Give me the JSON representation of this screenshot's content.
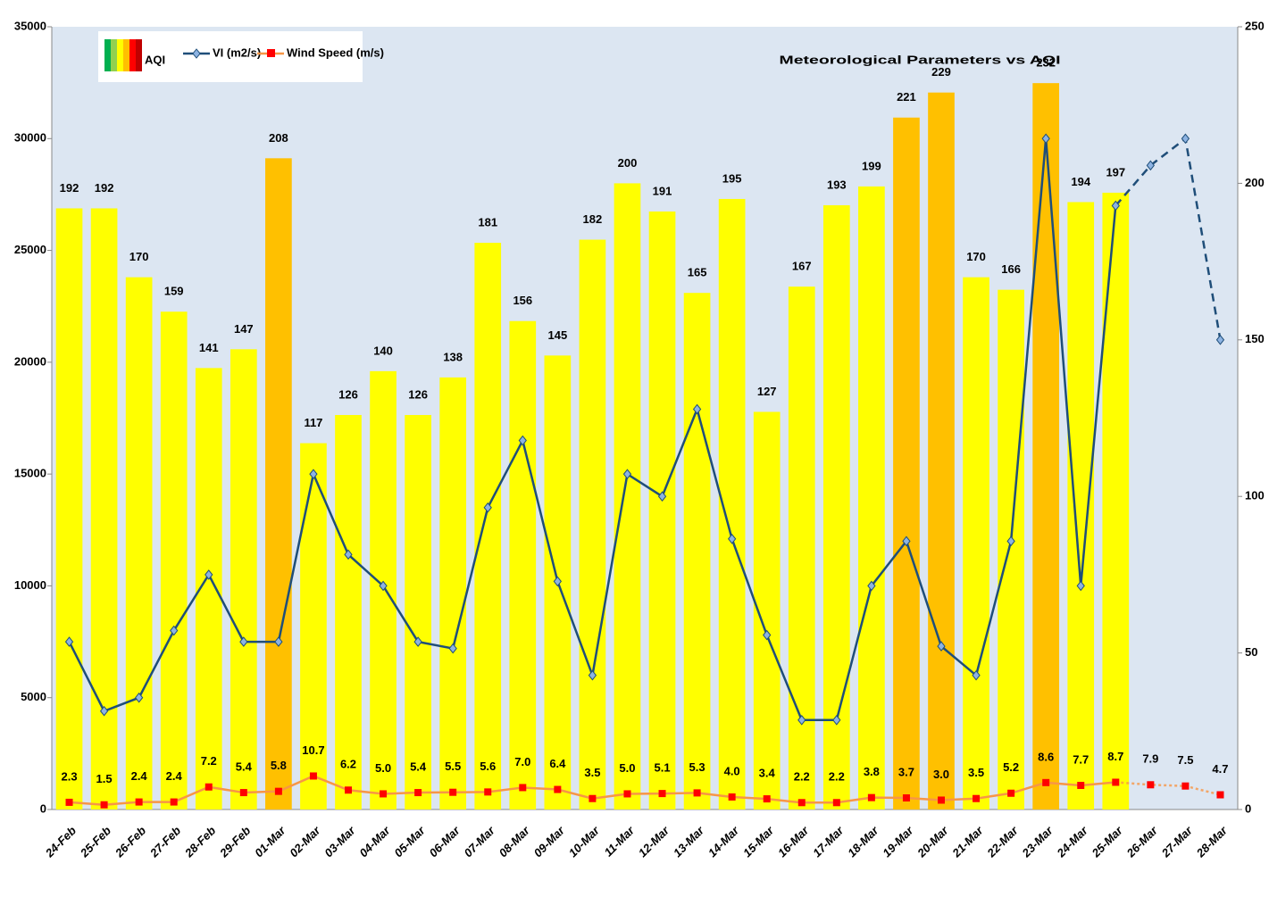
{
  "chart_data": {
    "type": "bar_line",
    "title": "Meteorological Parameters vs AQI",
    "categories": [
      "24-Feb",
      "25-Feb",
      "26-Feb",
      "27-Feb",
      "28-Feb",
      "29-Feb",
      "01-Mar",
      "02-Mar",
      "03-Mar",
      "04-Mar",
      "05-Mar",
      "06-Mar",
      "07-Mar",
      "08-Mar",
      "09-Mar",
      "10-Mar",
      "11-Mar",
      "12-Mar",
      "13-Mar",
      "14-Mar",
      "15-Mar",
      "16-Mar",
      "17-Mar",
      "18-Mar",
      "19-Mar",
      "20-Mar",
      "21-Mar",
      "22-Mar",
      "23-Mar",
      "24-Mar",
      "25-Mar",
      "26-Mar",
      "27-Mar",
      "28-Mar"
    ],
    "series": [
      {
        "name": "AQI",
        "type": "bar",
        "axis": "y2",
        "color": "#ffff00",
        "colors": [
          "#ffff00",
          "#ffff00",
          "#ffff00",
          "#ffff00",
          "#ffff00",
          "#ffff00",
          "#ffc000",
          "#ffff00",
          "#ffff00",
          "#ffff00",
          "#ffff00",
          "#ffff00",
          "#ffff00",
          "#ffff00",
          "#ffff00",
          "#ffff00",
          "#ffff00",
          "#ffff00",
          "#ffff00",
          "#ffff00",
          "#ffff00",
          "#ffff00",
          "#ffff00",
          "#ffff00",
          "#ffc000",
          "#ffc000",
          "#ffff00",
          "#ffff00",
          "#ffc000",
          "#ffff00",
          "#ffff00",
          null,
          null,
          null
        ],
        "values": [
          192,
          192,
          170,
          159,
          141,
          147,
          208,
          117,
          126,
          140,
          126,
          138,
          181,
          156,
          145,
          182,
          200,
          191,
          165,
          195,
          127,
          167,
          193,
          199,
          221,
          229,
          170,
          166,
          232,
          194,
          197,
          null,
          null,
          null
        ]
      },
      {
        "name": "VI (m2/s)",
        "type": "line",
        "axis": "y",
        "color": "#1f4e79",
        "marker_color": "#8db3e2",
        "dashed_from": "25-Mar",
        "values": [
          7500,
          4400,
          5000,
          8000,
          10500,
          7500,
          7500,
          15000,
          11400,
          10000,
          7500,
          7200,
          13500,
          16500,
          10200,
          6000,
          15000,
          14000,
          17900,
          12100,
          7800,
          4000,
          4000,
          10000,
          12000,
          7300,
          6000,
          12000,
          30000,
          10000,
          27000,
          28800,
          30000,
          21000
        ]
      },
      {
        "name": "Wind Speed (m/s)",
        "type": "line",
        "axis": "y2",
        "color": "#f79646",
        "marker_color": "#ff0000",
        "dashed_from": "25-Mar",
        "values": [
          2.3,
          1.5,
          2.4,
          2.4,
          7.2,
          5.4,
          5.8,
          10.7,
          6.2,
          5.0,
          5.4,
          5.5,
          5.6,
          7.0,
          6.4,
          3.5,
          5.0,
          5.1,
          5.3,
          4.0,
          3.4,
          2.2,
          2.2,
          3.8,
          3.7,
          3.0,
          3.5,
          5.2,
          8.6,
          7.7,
          8.7,
          7.9,
          7.5,
          4.7
        ],
        "value_labels": [
          "2.3",
          "1.5",
          "2.4",
          "2.4",
          "7.2",
          "5.4",
          "5.8",
          "10.7",
          "6.2",
          "5.0",
          "5.4",
          "5.5",
          "5.6",
          "7.0",
          "6.4",
          "3.5",
          "5.0",
          "5.1",
          "5.3",
          "4.0",
          "3.4",
          "2.2",
          "2.2",
          "3.8",
          "3.7",
          "3.0",
          "3.5",
          "5.2",
          "8.6",
          "7.7",
          "8.7",
          "7.9",
          "7.5",
          "4.7"
        ]
      }
    ],
    "ylim": [
      0,
      35000
    ],
    "yticks": [
      0,
      5000,
      10000,
      15000,
      20000,
      25000,
      30000,
      35000
    ],
    "y2lim": [
      0,
      250
    ],
    "y2ticks": [
      0,
      50,
      100,
      150,
      200,
      250
    ],
    "plot_background": "#dce6f2"
  }
}
